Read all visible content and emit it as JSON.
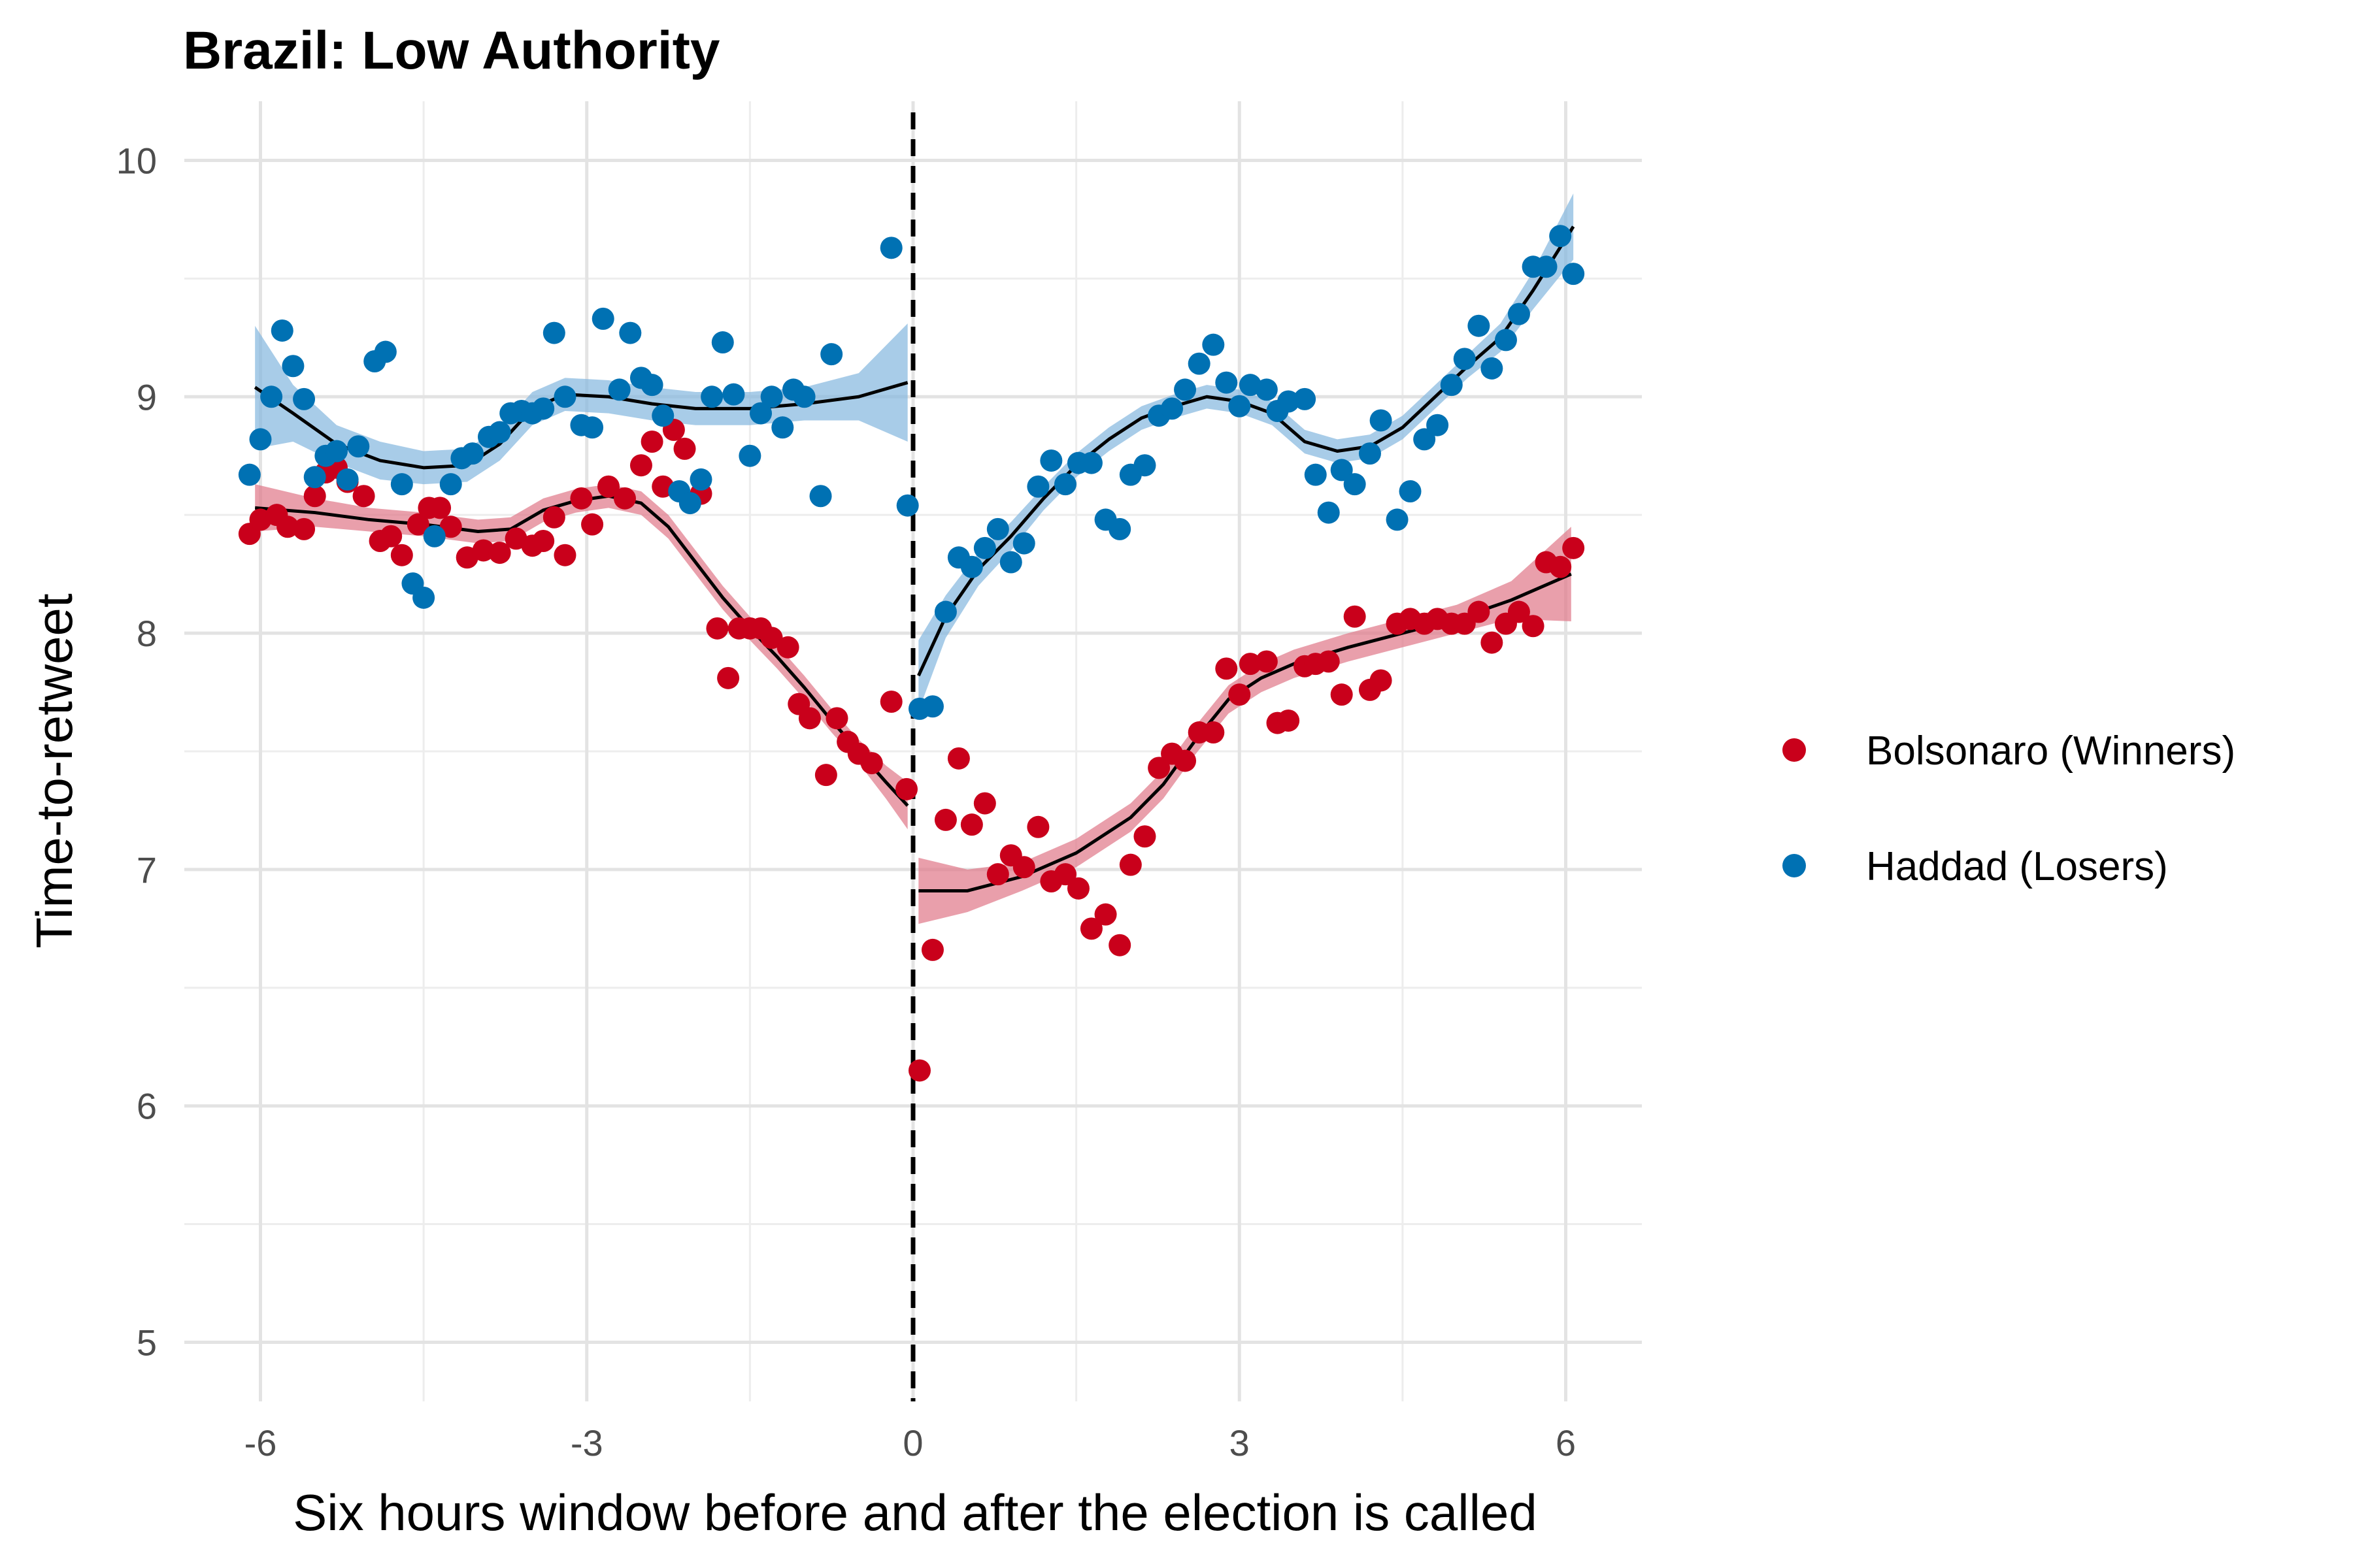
{
  "chart_data": {
    "type": "scatter",
    "title": "Brazil: Low Authority",
    "xlabel": "Six hours window before and after the election is called",
    "ylabel": "Time-to-retweet",
    "xlim": [
      -6.7,
      6.7
    ],
    "ylim": [
      4.75,
      10.25
    ],
    "x_ticks": [
      -6,
      -3,
      0,
      3,
      6
    ],
    "x_tick_labels": [
      "-6",
      "-3",
      "0",
      "3",
      "6"
    ],
    "y_ticks": [
      5,
      6,
      7,
      8,
      9,
      10
    ],
    "y_tick_labels": [
      "5",
      "6",
      "7",
      "8",
      "9",
      "10"
    ],
    "cutoff_x": 0,
    "grid": true,
    "legend_position": "right",
    "series": [
      {
        "name": "Bolsonaro (Winners)",
        "color": "#c9001b",
        "band_color": "#e07a8a",
        "points": [
          [
            -6.1,
            8.42
          ],
          [
            -6.0,
            8.48
          ],
          [
            -5.85,
            8.5
          ],
          [
            -5.75,
            8.45
          ],
          [
            -5.6,
            8.44
          ],
          [
            -5.5,
            8.58
          ],
          [
            -5.4,
            8.68
          ],
          [
            -5.3,
            8.7
          ],
          [
            -5.2,
            8.64
          ],
          [
            -5.05,
            8.58
          ],
          [
            -4.9,
            8.39
          ],
          [
            -4.8,
            8.41
          ],
          [
            -4.7,
            8.33
          ],
          [
            -4.55,
            8.46
          ],
          [
            -4.45,
            8.53
          ],
          [
            -4.35,
            8.53
          ],
          [
            -4.25,
            8.45
          ],
          [
            -4.1,
            8.32
          ],
          [
            -3.95,
            8.35
          ],
          [
            -3.8,
            8.34
          ],
          [
            -3.65,
            8.4
          ],
          [
            -3.5,
            8.37
          ],
          [
            -3.4,
            8.39
          ],
          [
            -3.3,
            8.49
          ],
          [
            -3.2,
            8.33
          ],
          [
            -3.05,
            8.57
          ],
          [
            -2.95,
            8.46
          ],
          [
            -2.8,
            8.62
          ],
          [
            -2.65,
            8.57
          ],
          [
            -2.5,
            8.71
          ],
          [
            -2.4,
            8.81
          ],
          [
            -2.3,
            8.62
          ],
          [
            -2.2,
            8.86
          ],
          [
            -2.1,
            8.78
          ],
          [
            -1.95,
            8.59
          ],
          [
            -1.8,
            8.02
          ],
          [
            -1.7,
            7.81
          ],
          [
            -1.6,
            8.02
          ],
          [
            -1.5,
            8.02
          ],
          [
            -1.4,
            8.02
          ],
          [
            -1.3,
            7.98
          ],
          [
            -1.15,
            7.94
          ],
          [
            -1.05,
            7.7
          ],
          [
            -0.95,
            7.64
          ],
          [
            -0.8,
            7.4
          ],
          [
            -0.7,
            7.64
          ],
          [
            -0.6,
            7.54
          ],
          [
            -0.5,
            7.49
          ],
          [
            -0.38,
            7.45
          ],
          [
            -0.2,
            7.71
          ],
          [
            -0.06,
            7.34
          ],
          [
            0.06,
            6.15
          ],
          [
            0.18,
            6.66
          ],
          [
            0.3,
            7.21
          ],
          [
            0.42,
            7.47
          ],
          [
            0.54,
            7.19
          ],
          [
            0.66,
            7.28
          ],
          [
            0.78,
            6.98
          ],
          [
            0.9,
            7.06
          ],
          [
            1.02,
            7.01
          ],
          [
            1.15,
            7.18
          ],
          [
            1.27,
            6.95
          ],
          [
            1.4,
            6.98
          ],
          [
            1.52,
            6.92
          ],
          [
            1.64,
            6.75
          ],
          [
            1.77,
            6.81
          ],
          [
            1.9,
            6.68
          ],
          [
            2.0,
            7.02
          ],
          [
            2.13,
            7.14
          ],
          [
            2.26,
            7.43
          ],
          [
            2.38,
            7.49
          ],
          [
            2.5,
            7.46
          ],
          [
            2.63,
            7.58
          ],
          [
            2.76,
            7.58
          ],
          [
            2.88,
            7.85
          ],
          [
            3.0,
            7.74
          ],
          [
            3.1,
            7.87
          ],
          [
            3.25,
            7.88
          ],
          [
            3.35,
            7.62
          ],
          [
            3.45,
            7.63
          ],
          [
            3.6,
            7.86
          ],
          [
            3.7,
            7.87
          ],
          [
            3.82,
            7.88
          ],
          [
            3.94,
            7.74
          ],
          [
            4.06,
            8.07
          ],
          [
            4.2,
            7.76
          ],
          [
            4.3,
            7.8
          ],
          [
            4.45,
            8.04
          ],
          [
            4.57,
            8.06
          ],
          [
            4.7,
            8.04
          ],
          [
            4.82,
            8.06
          ],
          [
            4.95,
            8.04
          ],
          [
            5.07,
            8.04
          ],
          [
            5.2,
            8.09
          ],
          [
            5.32,
            7.96
          ],
          [
            5.45,
            8.04
          ],
          [
            5.57,
            8.09
          ],
          [
            5.7,
            8.03
          ],
          [
            5.82,
            8.3
          ],
          [
            5.95,
            8.28
          ],
          [
            6.07,
            8.36
          ]
        ],
        "smooth": [
          [
            -6.05,
            8.53
          ],
          [
            -5.5,
            8.51
          ],
          [
            -5.0,
            8.48
          ],
          [
            -4.5,
            8.46
          ],
          [
            -4.0,
            8.43
          ],
          [
            -3.7,
            8.44
          ],
          [
            -3.4,
            8.52
          ],
          [
            -3.1,
            8.56
          ],
          [
            -2.8,
            8.58
          ],
          [
            -2.5,
            8.55
          ],
          [
            -2.25,
            8.45
          ],
          [
            -2.0,
            8.3
          ],
          [
            -1.75,
            8.15
          ],
          [
            -1.5,
            8.02
          ],
          [
            -1.25,
            7.9
          ],
          [
            -1.0,
            7.77
          ],
          [
            -0.75,
            7.63
          ],
          [
            -0.5,
            7.5
          ],
          [
            -0.25,
            7.37
          ],
          [
            -0.05,
            7.27
          ],
          [
            0.05,
            6.91
          ],
          [
            0.5,
            6.91
          ],
          [
            1.0,
            6.97
          ],
          [
            1.5,
            7.07
          ],
          [
            2.0,
            7.22
          ],
          [
            2.3,
            7.36
          ],
          [
            2.6,
            7.55
          ],
          [
            2.9,
            7.72
          ],
          [
            3.2,
            7.81
          ],
          [
            3.5,
            7.87
          ],
          [
            4.0,
            7.94
          ],
          [
            4.5,
            8.0
          ],
          [
            5.0,
            8.06
          ],
          [
            5.5,
            8.14
          ],
          [
            6.05,
            8.25
          ]
        ],
        "band_halfwidth": [
          0.1,
          0.06,
          0.05,
          0.05,
          0.05,
          0.05,
          0.05,
          0.05,
          0.05,
          0.05,
          0.05,
          0.05,
          0.05,
          0.05,
          0.05,
          0.05,
          0.05,
          0.05,
          0.07,
          0.1,
          0.14,
          0.09,
          0.06,
          0.06,
          0.06,
          0.06,
          0.06,
          0.06,
          0.06,
          0.06,
          0.06,
          0.06,
          0.06,
          0.08,
          0.2
        ]
      },
      {
        "name": "Haddad (Losers)",
        "color": "#0071b3",
        "band_color": "#86b9df",
        "points": [
          [
            -6.1,
            8.67
          ],
          [
            -6.0,
            8.82
          ],
          [
            -5.9,
            9.0
          ],
          [
            -5.8,
            9.28
          ],
          [
            -5.7,
            9.13
          ],
          [
            -5.6,
            8.99
          ],
          [
            -5.5,
            8.66
          ],
          [
            -5.4,
            8.75
          ],
          [
            -5.3,
            8.77
          ],
          [
            -5.2,
            8.65
          ],
          [
            -5.1,
            8.79
          ],
          [
            -4.95,
            9.15
          ],
          [
            -4.85,
            9.19
          ],
          [
            -4.7,
            8.63
          ],
          [
            -4.6,
            8.21
          ],
          [
            -4.5,
            8.15
          ],
          [
            -4.4,
            8.41
          ],
          [
            -4.25,
            8.63
          ],
          [
            -4.15,
            8.74
          ],
          [
            -4.05,
            8.76
          ],
          [
            -3.9,
            8.83
          ],
          [
            -3.8,
            8.85
          ],
          [
            -3.7,
            8.93
          ],
          [
            -3.6,
            8.94
          ],
          [
            -3.5,
            8.93
          ],
          [
            -3.4,
            8.95
          ],
          [
            -3.3,
            9.27
          ],
          [
            -3.2,
            9.0
          ],
          [
            -3.05,
            8.88
          ],
          [
            -2.95,
            8.87
          ],
          [
            -2.85,
            9.33
          ],
          [
            -2.7,
            9.03
          ],
          [
            -2.6,
            9.27
          ],
          [
            -2.5,
            9.08
          ],
          [
            -2.4,
            9.05
          ],
          [
            -2.3,
            8.92
          ],
          [
            -2.15,
            8.6
          ],
          [
            -2.05,
            8.55
          ],
          [
            -1.95,
            8.65
          ],
          [
            -1.85,
            9.0
          ],
          [
            -1.75,
            9.23
          ],
          [
            -1.65,
            9.01
          ],
          [
            -1.5,
            8.75
          ],
          [
            -1.4,
            8.93
          ],
          [
            -1.3,
            9.0
          ],
          [
            -1.2,
            8.87
          ],
          [
            -1.1,
            9.03
          ],
          [
            -1.0,
            9.0
          ],
          [
            -0.85,
            8.58
          ],
          [
            -0.75,
            9.18
          ],
          [
            -0.2,
            9.63
          ],
          [
            -0.05,
            8.54
          ],
          [
            0.06,
            7.68
          ],
          [
            0.18,
            7.69
          ],
          [
            0.3,
            8.09
          ],
          [
            0.42,
            8.32
          ],
          [
            0.54,
            8.28
          ],
          [
            0.66,
            8.36
          ],
          [
            0.78,
            8.44
          ],
          [
            0.9,
            8.3
          ],
          [
            1.02,
            8.38
          ],
          [
            1.15,
            8.62
          ],
          [
            1.27,
            8.73
          ],
          [
            1.4,
            8.63
          ],
          [
            1.52,
            8.72
          ],
          [
            1.64,
            8.72
          ],
          [
            1.77,
            8.48
          ],
          [
            1.9,
            8.44
          ],
          [
            2.0,
            8.67
          ],
          [
            2.13,
            8.71
          ],
          [
            2.26,
            8.92
          ],
          [
            2.38,
            8.95
          ],
          [
            2.5,
            9.03
          ],
          [
            2.63,
            9.14
          ],
          [
            2.76,
            9.22
          ],
          [
            2.88,
            9.06
          ],
          [
            3.0,
            8.96
          ],
          [
            3.1,
            9.05
          ],
          [
            3.25,
            9.03
          ],
          [
            3.35,
            8.94
          ],
          [
            3.45,
            8.98
          ],
          [
            3.6,
            8.99
          ],
          [
            3.7,
            8.67
          ],
          [
            3.82,
            8.51
          ],
          [
            3.94,
            8.69
          ],
          [
            4.06,
            8.63
          ],
          [
            4.2,
            8.76
          ],
          [
            4.3,
            8.9
          ],
          [
            4.45,
            8.48
          ],
          [
            4.57,
            8.6
          ],
          [
            4.7,
            8.82
          ],
          [
            4.82,
            8.88
          ],
          [
            4.95,
            9.05
          ],
          [
            5.07,
            9.16
          ],
          [
            5.2,
            9.3
          ],
          [
            5.32,
            9.12
          ],
          [
            5.45,
            9.24
          ],
          [
            5.57,
            9.35
          ],
          [
            5.7,
            9.55
          ],
          [
            5.82,
            9.55
          ],
          [
            5.95,
            9.68
          ],
          [
            6.07,
            9.52
          ]
        ],
        "smooth": [
          [
            -6.05,
            9.04
          ],
          [
            -5.7,
            8.93
          ],
          [
            -5.3,
            8.8
          ],
          [
            -4.9,
            8.73
          ],
          [
            -4.5,
            8.7
          ],
          [
            -4.1,
            8.71
          ],
          [
            -3.8,
            8.8
          ],
          [
            -3.5,
            8.95
          ],
          [
            -3.2,
            9.01
          ],
          [
            -2.8,
            9.0
          ],
          [
            -2.4,
            8.97
          ],
          [
            -2.0,
            8.95
          ],
          [
            -1.5,
            8.95
          ],
          [
            -1.0,
            8.97
          ],
          [
            -0.5,
            9.0
          ],
          [
            -0.05,
            9.06
          ],
          [
            0.05,
            7.82
          ],
          [
            0.3,
            8.07
          ],
          [
            0.6,
            8.27
          ],
          [
            0.9,
            8.41
          ],
          [
            1.2,
            8.57
          ],
          [
            1.5,
            8.71
          ],
          [
            1.8,
            8.82
          ],
          [
            2.1,
            8.91
          ],
          [
            2.4,
            8.96
          ],
          [
            2.7,
            9.0
          ],
          [
            3.0,
            8.98
          ],
          [
            3.3,
            8.93
          ],
          [
            3.6,
            8.81
          ],
          [
            3.9,
            8.77
          ],
          [
            4.2,
            8.79
          ],
          [
            4.5,
            8.87
          ],
          [
            4.8,
            9.0
          ],
          [
            5.1,
            9.13
          ],
          [
            5.4,
            9.25
          ],
          [
            5.7,
            9.45
          ],
          [
            6.07,
            9.72
          ]
        ],
        "band_halfwidth": [
          0.26,
          0.12,
          0.08,
          0.08,
          0.07,
          0.07,
          0.07,
          0.07,
          0.07,
          0.07,
          0.07,
          0.07,
          0.07,
          0.07,
          0.1,
          0.25,
          0.15,
          0.09,
          0.07,
          0.06,
          0.05,
          0.05,
          0.05,
          0.05,
          0.05,
          0.05,
          0.05,
          0.05,
          0.05,
          0.05,
          0.05,
          0.05,
          0.05,
          0.05,
          0.06,
          0.08,
          0.14
        ]
      }
    ]
  }
}
